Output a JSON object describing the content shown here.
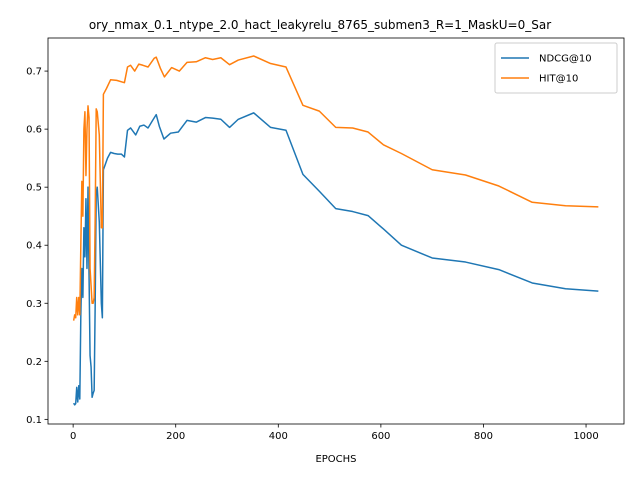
{
  "chart_data": {
    "type": "line",
    "title": "ory_nmax_0.1_ntype_2.0_hact_leakyrelu_8765_submen3_R=1_MaskU=0_Sar",
    "xlabel": "EPOCHS",
    "ylabel": "",
    "xlim": [
      -49,
      1074
    ],
    "ylim": [
      0.092,
      0.757
    ],
    "xticks": [
      0,
      200,
      400,
      600,
      800,
      1000
    ],
    "yticks": [
      0.1,
      0.2,
      0.3,
      0.4,
      0.5,
      0.6,
      0.7
    ],
    "grid": false,
    "legend": "top-right",
    "series": [
      {
        "name": "NDCG@10",
        "color": "#1f77b4",
        "points": [
          [
            1,
            0.128
          ],
          [
            3,
            0.125
          ],
          [
            5,
            0.127
          ],
          [
            7,
            0.155
          ],
          [
            9,
            0.13
          ],
          [
            11,
            0.158
          ],
          [
            13,
            0.135
          ],
          [
            15,
            0.28
          ],
          [
            17,
            0.36
          ],
          [
            19,
            0.31
          ],
          [
            21,
            0.43
          ],
          [
            23,
            0.38
          ],
          [
            25,
            0.48
          ],
          [
            27,
            0.36
          ],
          [
            29,
            0.5
          ],
          [
            31,
            0.35
          ],
          [
            33,
            0.21
          ],
          [
            35,
            0.19
          ],
          [
            37,
            0.138
          ],
          [
            39,
            0.145
          ],
          [
            41,
            0.15
          ],
          [
            43,
            0.3
          ],
          [
            45,
            0.49
          ],
          [
            47,
            0.5
          ],
          [
            49,
            0.47
          ],
          [
            51,
            0.44
          ],
          [
            55,
            0.3
          ],
          [
            57,
            0.275
          ],
          [
            59,
            0.53
          ],
          [
            63,
            0.54
          ],
          [
            67,
            0.55
          ],
          [
            73,
            0.56
          ],
          [
            80,
            0.558
          ],
          [
            87,
            0.557
          ],
          [
            94,
            0.557
          ],
          [
            100,
            0.552
          ],
          [
            106,
            0.598
          ],
          [
            112,
            0.602
          ],
          [
            122,
            0.59
          ],
          [
            130,
            0.605
          ],
          [
            138,
            0.607
          ],
          [
            146,
            0.602
          ],
          [
            155,
            0.615
          ],
          [
            162,
            0.625
          ],
          [
            168,
            0.605
          ],
          [
            177,
            0.583
          ],
          [
            190,
            0.593
          ],
          [
            205,
            0.595
          ],
          [
            222,
            0.615
          ],
          [
            240,
            0.612
          ],
          [
            258,
            0.62
          ],
          [
            272,
            0.619
          ],
          [
            288,
            0.617
          ],
          [
            305,
            0.603
          ],
          [
            322,
            0.617
          ],
          [
            352,
            0.628
          ],
          [
            385,
            0.603
          ],
          [
            415,
            0.598
          ],
          [
            448,
            0.522
          ],
          [
            480,
            0.493
          ],
          [
            512,
            0.463
          ],
          [
            545,
            0.458
          ],
          [
            575,
            0.451
          ],
          [
            605,
            0.428
          ],
          [
            640,
            0.4
          ],
          [
            700,
            0.378
          ],
          [
            765,
            0.371
          ],
          [
            830,
            0.358
          ],
          [
            895,
            0.335
          ],
          [
            960,
            0.325
          ],
          [
            1024,
            0.321
          ]
        ]
      },
      {
        "name": "HIT@10",
        "color": "#ff7f0e",
        "points": [
          [
            1,
            0.27
          ],
          [
            3,
            0.28
          ],
          [
            5,
            0.275
          ],
          [
            7,
            0.31
          ],
          [
            9,
            0.28
          ],
          [
            11,
            0.31
          ],
          [
            13,
            0.28
          ],
          [
            15,
            0.4
          ],
          [
            17,
            0.51
          ],
          [
            19,
            0.45
          ],
          [
            21,
            0.6
          ],
          [
            23,
            0.63
          ],
          [
            25,
            0.52
          ],
          [
            27,
            0.6
          ],
          [
            29,
            0.64
          ],
          [
            31,
            0.62
          ],
          [
            33,
            0.36
          ],
          [
            35,
            0.33
          ],
          [
            37,
            0.3
          ],
          [
            39,
            0.3
          ],
          [
            41,
            0.31
          ],
          [
            43,
            0.45
          ],
          [
            45,
            0.635
          ],
          [
            47,
            0.63
          ],
          [
            49,
            0.61
          ],
          [
            51,
            0.59
          ],
          [
            55,
            0.43
          ],
          [
            57,
            0.43
          ],
          [
            59,
            0.66
          ],
          [
            65,
            0.67
          ],
          [
            73,
            0.685
          ],
          [
            85,
            0.684
          ],
          [
            100,
            0.68
          ],
          [
            106,
            0.707
          ],
          [
            112,
            0.71
          ],
          [
            120,
            0.7
          ],
          [
            128,
            0.712
          ],
          [
            136,
            0.71
          ],
          [
            146,
            0.707
          ],
          [
            158,
            0.722
          ],
          [
            162,
            0.724
          ],
          [
            170,
            0.705
          ],
          [
            178,
            0.69
          ],
          [
            192,
            0.706
          ],
          [
            207,
            0.7
          ],
          [
            222,
            0.715
          ],
          [
            240,
            0.716
          ],
          [
            258,
            0.723
          ],
          [
            272,
            0.72
          ],
          [
            288,
            0.723
          ],
          [
            305,
            0.711
          ],
          [
            322,
            0.719
          ],
          [
            352,
            0.726
          ],
          [
            385,
            0.713
          ],
          [
            415,
            0.707
          ],
          [
            448,
            0.641
          ],
          [
            480,
            0.631
          ],
          [
            512,
            0.603
          ],
          [
            545,
            0.602
          ],
          [
            575,
            0.595
          ],
          [
            605,
            0.573
          ],
          [
            640,
            0.558
          ],
          [
            700,
            0.53
          ],
          [
            765,
            0.521
          ],
          [
            830,
            0.502
          ],
          [
            895,
            0.474
          ],
          [
            960,
            0.468
          ],
          [
            1024,
            0.466
          ]
        ]
      }
    ]
  }
}
